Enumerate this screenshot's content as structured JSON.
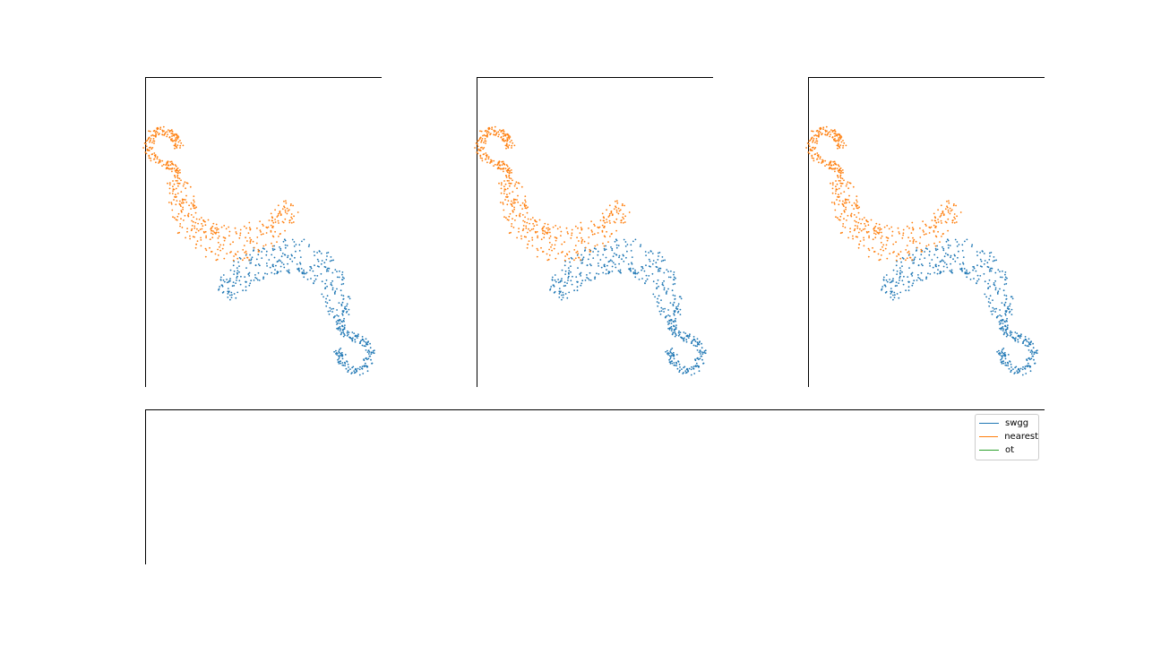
{
  "chart_data": [
    {
      "type": "scatter",
      "title": "",
      "xlabel": "",
      "ylabel": "",
      "series": [
        {
          "color": "#1f77b4",
          "shape": "crescent-with-loop",
          "n_points": 500
        },
        {
          "color": "#ff7f0e",
          "shape": "crescent-with-loop",
          "n_points": 500
        }
      ],
      "grid": false,
      "axes_visible": [
        "left",
        "top"
      ]
    },
    {
      "type": "scatter",
      "title": "",
      "xlabel": "",
      "ylabel": "",
      "series": [
        {
          "color": "#1f77b4",
          "shape": "crescent-with-loop",
          "n_points": 500
        },
        {
          "color": "#ff7f0e",
          "shape": "crescent-with-loop",
          "n_points": 500
        }
      ],
      "grid": false,
      "axes_visible": [
        "left",
        "top"
      ]
    },
    {
      "type": "scatter",
      "title": "",
      "xlabel": "",
      "ylabel": "",
      "series": [
        {
          "color": "#1f77b4",
          "shape": "crescent-with-loop",
          "n_points": 500
        },
        {
          "color": "#ff7f0e",
          "shape": "crescent-with-loop",
          "n_points": 500
        }
      ],
      "grid": false,
      "axes_visible": [
        "left",
        "top"
      ]
    },
    {
      "type": "line",
      "title": "",
      "xlabel": "",
      "ylabel": "",
      "series": [
        {
          "name": "swgg",
          "color": "#1f77b4",
          "values": []
        },
        {
          "name": "nearest",
          "color": "#ff7f0e",
          "values": []
        },
        {
          "name": "ot",
          "color": "#2ca02c",
          "values": []
        }
      ],
      "legend": "top-right",
      "grid": false,
      "axes_visible": [
        "left",
        "top"
      ]
    }
  ]
}
